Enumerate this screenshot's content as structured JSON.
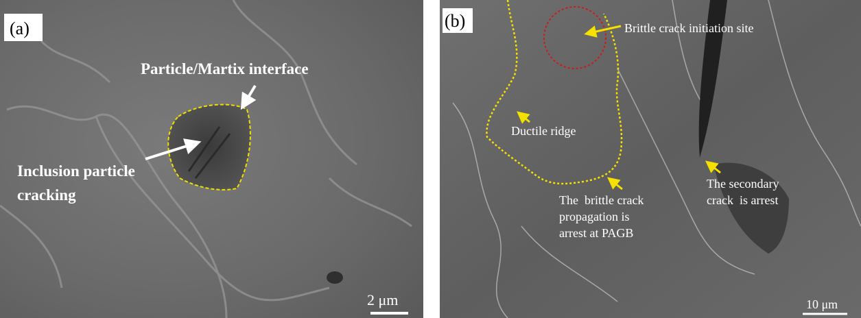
{
  "panels": [
    {
      "label": "(a)",
      "annotations": [
        {
          "lines": [
            "Particle/Martix interface"
          ]
        },
        {
          "lines": [
            "Inclusion particle",
            "cracking"
          ]
        }
      ],
      "scale_bar": "2 μm"
    },
    {
      "label": "(b)",
      "annotations": [
        {
          "lines": [
            "Brittle crack initiation site"
          ]
        },
        {
          "lines": [
            "Ductile ridge"
          ]
        },
        {
          "lines": [
            "The  brittle crack",
            "propagation is",
            "arrest at PAGB"
          ]
        },
        {
          "lines": [
            "The secondary",
            "crack  is arrest"
          ]
        }
      ],
      "scale_bar": "10 μm"
    }
  ]
}
